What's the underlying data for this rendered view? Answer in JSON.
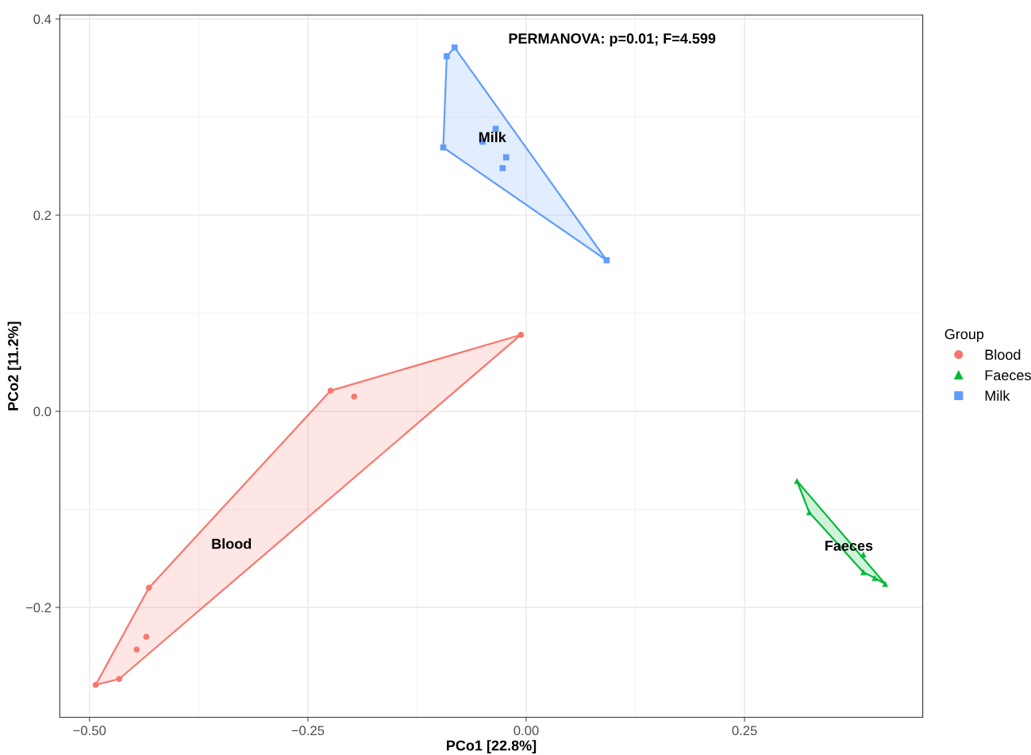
{
  "chart_data": {
    "type": "scatter",
    "xlabel": "PCo1 [22.8%]",
    "ylabel": "PCo2 [11.2%]",
    "legend_title": "Group",
    "legend": "right",
    "grid": true,
    "annotations": [
      "PERMANOVA: p=0.01; F=4.599"
    ],
    "xlim": [
      -0.534,
      0.454
    ],
    "ylim": [
      -0.312,
      0.404
    ],
    "xticks": [
      {
        "value": -0.5,
        "label": "−0.50"
      },
      {
        "value": -0.25,
        "label": "−0.25"
      },
      {
        "value": 0,
        "label": "0.00"
      },
      {
        "value": 0.25,
        "label": "0.25"
      }
    ],
    "yticks": [
      {
        "value": -0.2,
        "label": "−0.2"
      },
      {
        "value": 0,
        "label": "0.0"
      },
      {
        "value": 0.2,
        "label": "0.2"
      },
      {
        "value": 0.4,
        "label": "0.4"
      }
    ],
    "series": [
      {
        "name": "Blood",
        "color": "#f8766d",
        "marker": "circle",
        "x": [
          -0.006,
          -0.224,
          -0.197,
          -0.432,
          -0.435,
          -0.446,
          -0.466,
          -0.493
        ],
        "values": [
          0.078,
          0.021,
          0.015,
          -0.18,
          -0.23,
          -0.243,
          -0.273,
          -0.279
        ]
      },
      {
        "name": "Faeces",
        "color": "#00ba38",
        "marker": "triangle",
        "x": [
          0.31,
          0.324,
          0.386,
          0.386,
          0.399,
          0.411
        ],
        "values": [
          -0.071,
          -0.103,
          -0.146,
          -0.164,
          -0.17,
          -0.176
        ]
      },
      {
        "name": "Milk",
        "color": "#619cff",
        "marker": "square",
        "x": [
          -0.082,
          -0.091,
          -0.095,
          -0.05,
          -0.035,
          -0.023,
          -0.027,
          0.092
        ],
        "values": [
          0.371,
          0.362,
          0.269,
          0.275,
          0.288,
          0.259,
          0.248,
          0.154
        ]
      },
      {
        "type": "area",
        "color": "#f8766d",
        "x": [
          -0.493,
          -0.466,
          -0.006,
          -0.224,
          -0.432,
          -0.493
        ],
        "values": [
          -0.279,
          -0.273,
          0.078,
          0.021,
          -0.18,
          -0.279
        ]
      },
      {
        "type": "area",
        "color": "#00ba38",
        "x": [
          0.31,
          0.411,
          0.399,
          0.386,
          0.324,
          0.31
        ],
        "values": [
          -0.071,
          -0.176,
          -0.17,
          -0.164,
          -0.103,
          -0.071
        ]
      },
      {
        "type": "area",
        "color": "#619cff",
        "x": [
          -0.095,
          0.092,
          -0.082,
          -0.091,
          -0.095
        ],
        "values": [
          0.269,
          0.154,
          0.371,
          0.362,
          0.269
        ]
      }
    ]
  }
}
